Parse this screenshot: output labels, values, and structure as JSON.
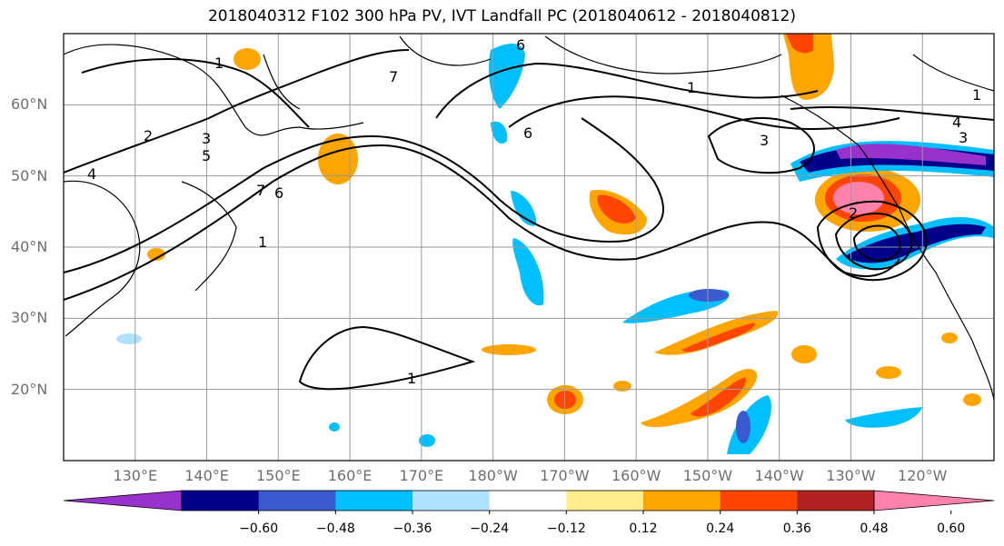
{
  "title": "2018040312 F102 300 hPa PV, IVT Landfall PC (2018040612 - 2018040812)",
  "map": {
    "lat_labels": [
      {
        "text": "60°N",
        "lat": 60
      },
      {
        "text": "50°N",
        "lat": 50
      },
      {
        "text": "40°N",
        "lat": 40
      },
      {
        "text": "30°N",
        "lat": 30
      },
      {
        "text": "20°N",
        "lat": 20
      }
    ],
    "lon_labels": [
      {
        "text": "130°E",
        "lon": 130
      },
      {
        "text": "140°E",
        "lon": 140
      },
      {
        "text": "150°E",
        "lon": 150
      },
      {
        "text": "160°E",
        "lon": 160
      },
      {
        "text": "170°E",
        "lon": 170
      },
      {
        "text": "180°W",
        "lon": 180
      },
      {
        "text": "170°W",
        "lon": 190
      },
      {
        "text": "160°W",
        "lon": 200
      },
      {
        "text": "150°W",
        "lon": 210
      },
      {
        "text": "140°W",
        "lon": 220
      },
      {
        "text": "130°W",
        "lon": 230
      },
      {
        "text": "120°W",
        "lon": 240
      }
    ],
    "extent": {
      "lon_min": 120,
      "lon_max": 250,
      "lat_min": 10,
      "lat_max": 70
    },
    "contour_labels": [
      "1",
      "2",
      "3",
      "5",
      "4",
      "7",
      "6",
      "6",
      "1",
      "1",
      "3",
      "4",
      "3",
      "2",
      "1",
      "7",
      "6",
      "1"
    ]
  },
  "colorbar": {
    "ticks": [
      "−0.60",
      "−0.48",
      "−0.36",
      "−0.24",
      "−0.12",
      "0.12",
      "0.24",
      "0.36",
      "0.48",
      "0.60"
    ],
    "colors": [
      "#9932cc",
      "#00008b",
      "#3a5bd0",
      "#00bfff",
      "#b0e2ff",
      "#ffffff",
      "#ffec8b",
      "#ffa500",
      "#ff4500",
      "#b22222",
      "#ff82ab"
    ]
  },
  "colors": {
    "neg_strong": "#00008b",
    "neg_medium": "#3a5bd0",
    "neg_light": "#00bfff",
    "pos_light": "#ffa500",
    "pos_medium": "#ff4500",
    "pos_strong": "#b22222",
    "pos_max": "#ff82ab",
    "purple": "#9932cc"
  }
}
